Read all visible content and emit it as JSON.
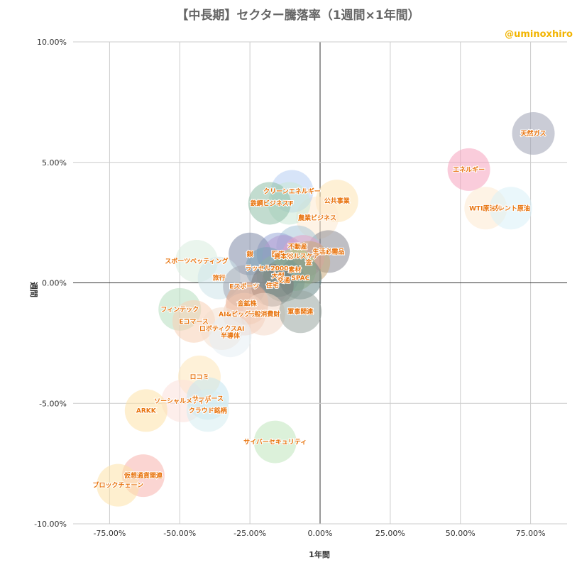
{
  "chart_data": {
    "type": "scatter",
    "title": "【中長期】セクター騰落率（1週間×1年間）",
    "watermark": "@uminoxhiro",
    "xlabel": "1年間",
    "ylabel": "週間",
    "xlim": [
      -0.88,
      0.88
    ],
    "ylim": [
      -10,
      10
    ],
    "x_ticks": [
      {
        "value": -0.75,
        "label": "-75.00%"
      },
      {
        "value": -0.5,
        "label": "-50.00%"
      },
      {
        "value": -0.25,
        "label": "-25.00%"
      },
      {
        "value": 0,
        "label": "0.00%"
      },
      {
        "value": 0.25,
        "label": "25.00%"
      },
      {
        "value": 0.5,
        "label": "50.00%"
      },
      {
        "value": 0.75,
        "label": "75.00%"
      }
    ],
    "y_ticks": [
      {
        "value": 10,
        "label": "10.00%"
      },
      {
        "value": 5,
        "label": "5.00%"
      },
      {
        "value": 0,
        "label": "0.00%"
      },
      {
        "value": -5,
        "label": "-5.00%"
      },
      {
        "value": -10,
        "label": "-10.00%"
      }
    ],
    "grid": true,
    "points": [
      {
        "label": "天然ガス",
        "x": 0.76,
        "y": 6.2,
        "color": "#9ea3b5"
      },
      {
        "label": "エネルギー",
        "x": 0.53,
        "y": 4.7,
        "color": "#f6a3bd"
      },
      {
        "label": "WTI原油先",
        "x": 0.59,
        "y": 3.1,
        "color": "#fde9cf"
      },
      {
        "label": "ブレント原油",
        "x": 0.68,
        "y": 3.1,
        "color": "#d9f1f7"
      },
      {
        "label": "公共事業",
        "x": 0.06,
        "y": 3.4,
        "color": "#fde3b3"
      },
      {
        "label": "農業ビジネス",
        "x": -0.01,
        "y": 2.7,
        "color": "#fde9cf"
      },
      {
        "label": "クリーンエネルギー",
        "x": -0.1,
        "y": 3.8,
        "color": "#b7cdf2"
      },
      {
        "label": "TF",
        "x": -0.11,
        "y": 3.3,
        "color": "#c9e8d6"
      },
      {
        "label": "鉄鋼ビジネス",
        "x": -0.18,
        "y": 3.3,
        "color": "#8fbfa8"
      },
      {
        "label": "生活必需品",
        "x": 0.03,
        "y": 1.3,
        "color": "#8b8b93"
      },
      {
        "label": "不動産",
        "x": -0.08,
        "y": 1.5,
        "color": "#a8c7d9"
      },
      {
        "label": "医療",
        "x": -0.15,
        "y": 1.2,
        "color": "#9aa9d8"
      },
      {
        "label": "銀",
        "x": -0.25,
        "y": 1.2,
        "color": "#7f8aa8"
      },
      {
        "label": "資本財",
        "x": -0.13,
        "y": 1.1,
        "color": "#b39ad1"
      },
      {
        "label": "ヘルスケア",
        "x": -0.06,
        "y": 1.1,
        "color": "#e6a3c6"
      },
      {
        "label": "金",
        "x": -0.04,
        "y": 0.85,
        "color": "#c8a97a"
      },
      {
        "label": "ラッセル2000",
        "x": -0.19,
        "y": 0.6,
        "color": "#7aa3b8"
      },
      {
        "label": "素材",
        "x": -0.09,
        "y": 0.55,
        "color": "#b5d18a"
      },
      {
        "label": "大型",
        "x": -0.15,
        "y": 0.3,
        "color": "#8fb3a6"
      },
      {
        "label": "SPAC",
        "x": -0.07,
        "y": 0.2,
        "color": "#6a8a8a"
      },
      {
        "label": "交通",
        "x": -0.13,
        "y": 0.1,
        "color": "#7d9b8e"
      },
      {
        "label": "スポーツベッティング",
        "x": -0.44,
        "y": 0.9,
        "color": "#d9ecde"
      },
      {
        "label": "旅行",
        "x": -0.36,
        "y": 0.2,
        "color": "#cde3ea"
      },
      {
        "label": "Eスポーツ",
        "x": -0.27,
        "y": -0.15,
        "color": "#a5aab5"
      },
      {
        "label": "住宅",
        "x": -0.17,
        "y": -0.1,
        "color": "#7a7a7a"
      },
      {
        "label": "金鉱株",
        "x": -0.26,
        "y": -0.85,
        "color": "#e8a98a"
      },
      {
        "label": "AI&ビッグデータ",
        "x": -0.27,
        "y": -1.3,
        "color": "#f2c8b2"
      },
      {
        "label": "一般消費財",
        "x": -0.2,
        "y": -1.3,
        "color": "#f4d9c9"
      },
      {
        "label": "軍事関連",
        "x": -0.07,
        "y": -1.2,
        "color": "#99a5a0"
      },
      {
        "label": "フィンテック",
        "x": -0.5,
        "y": -1.1,
        "color": "#b7dfc0"
      },
      {
        "label": "Eコマース",
        "x": -0.45,
        "y": -1.6,
        "color": "#f7d0b5"
      },
      {
        "label": "ロボティクスAI",
        "x": -0.35,
        "y": -1.9,
        "color": "#f4e0d0"
      },
      {
        "label": "半導体",
        "x": -0.32,
        "y": -2.2,
        "color": "#e6eef4"
      },
      {
        "label": "ロコミ",
        "x": -0.43,
        "y": -3.9,
        "color": "#fde6b8"
      },
      {
        "label": "ソーシャルメディア",
        "x": -0.49,
        "y": -4.9,
        "color": "#fbe0da"
      },
      {
        "label": "サーバース",
        "x": -0.4,
        "y": -4.8,
        "color": "#c4e6f0"
      },
      {
        "label": "クラウド銘柄",
        "x": -0.4,
        "y": -5.3,
        "color": "#d6edf0"
      },
      {
        "label": "ARKK",
        "x": -0.62,
        "y": -5.3,
        "color": "#fde1a8"
      },
      {
        "label": "サイバーセキュリティ",
        "x": -0.16,
        "y": -6.6,
        "color": "#bfe5bb"
      },
      {
        "label": "仮想通貨関連",
        "x": -0.63,
        "y": -8.0,
        "color": "#f7b3ad"
      },
      {
        "label": "ブロックチェーン",
        "x": -0.72,
        "y": -8.4,
        "color": "#fde1a8"
      }
    ]
  }
}
